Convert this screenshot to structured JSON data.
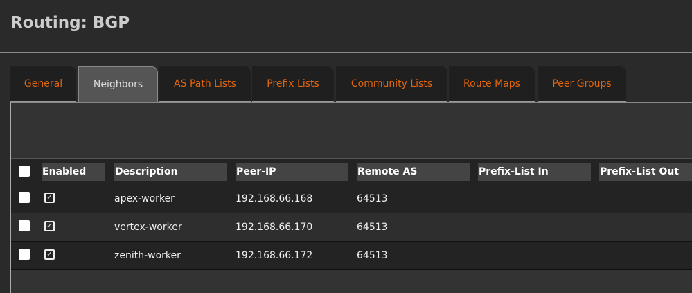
{
  "title": "Routing: BGP",
  "tabs": [
    {
      "label": "General"
    },
    {
      "label": "Neighbors"
    },
    {
      "label": "AS Path Lists"
    },
    {
      "label": "Prefix Lists"
    },
    {
      "label": "Community Lists"
    },
    {
      "label": "Route Maps"
    },
    {
      "label": "Peer Groups"
    }
  ],
  "active_tab": "Neighbors",
  "table": {
    "columns": [
      "Enabled",
      "Description",
      "Peer-IP",
      "Remote AS",
      "Prefix-List In",
      "Prefix-List Out"
    ],
    "rows": [
      {
        "enabled": true,
        "description": "apex-worker",
        "peer_ip": "192.168.66.168",
        "remote_as": "64513",
        "prefix_in": "",
        "prefix_out": ""
      },
      {
        "enabled": true,
        "description": "vertex-worker",
        "peer_ip": "192.168.66.170",
        "remote_as": "64513",
        "prefix_in": "",
        "prefix_out": ""
      },
      {
        "enabled": true,
        "description": "zenith-worker",
        "peer_ip": "192.168.66.172",
        "remote_as": "64513",
        "prefix_in": "",
        "prefix_out": ""
      }
    ]
  },
  "colors": {
    "accent": "#e0650f",
    "background": "#2a2a2a"
  }
}
